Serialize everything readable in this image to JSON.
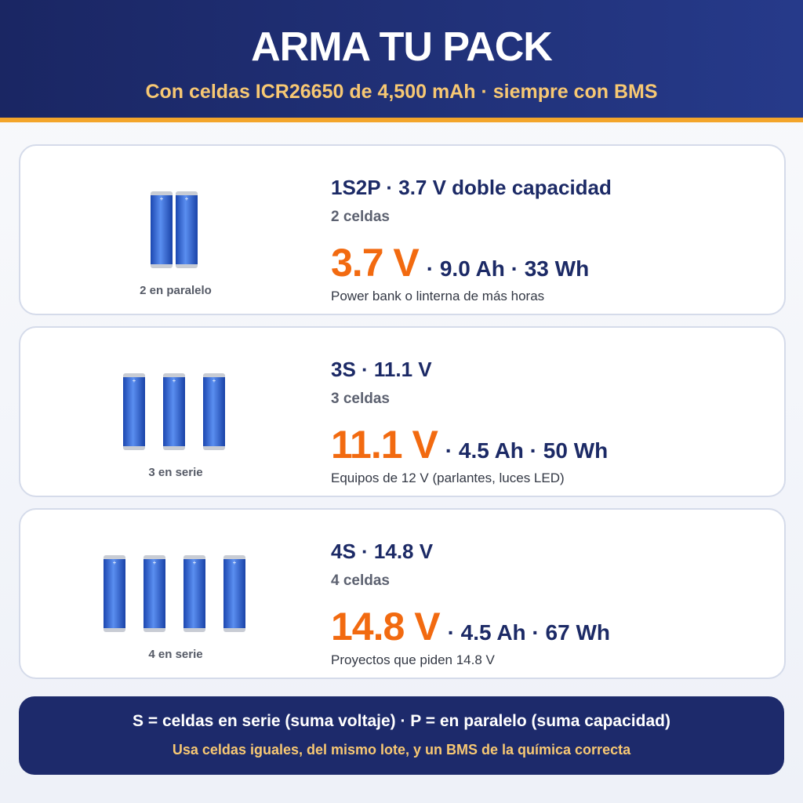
{
  "header": {
    "title": "ARMA TU PACK",
    "subtitle": "Con celdas ICR26650 de 4,500 mAh · siempre con BMS"
  },
  "cards": [
    {
      "cells_label": "2 en paralelo",
      "title": "1S2P · 3.7 V doble capacidad",
      "count": "2 celdas",
      "voltage": "3.7 V",
      "details": "· 9.0 Ah · 33 Wh",
      "use": "Power bank o linterna de más horas"
    },
    {
      "cells_label": "3 en serie",
      "title": "3S · 11.1 V",
      "count": "3 celdas",
      "voltage": "11.1 V",
      "details": "· 4.5 Ah · 50 Wh",
      "use": "Equipos de 12 V (parlantes, luces LED)"
    },
    {
      "cells_label": "4 en serie",
      "title": "4S · 14.8 V",
      "count": "4 celdas",
      "voltage": "14.8 V",
      "details": "· 4.5 Ah · 67 Wh",
      "use": "Proyectos que piden 14.8 V"
    }
  ],
  "footer": {
    "line1": "S = celdas en serie (suma voltaje) · P = en paralelo (suma capacidad)",
    "line2": "Usa celdas iguales, del mismo lote, y un BMS de la química correcta"
  }
}
